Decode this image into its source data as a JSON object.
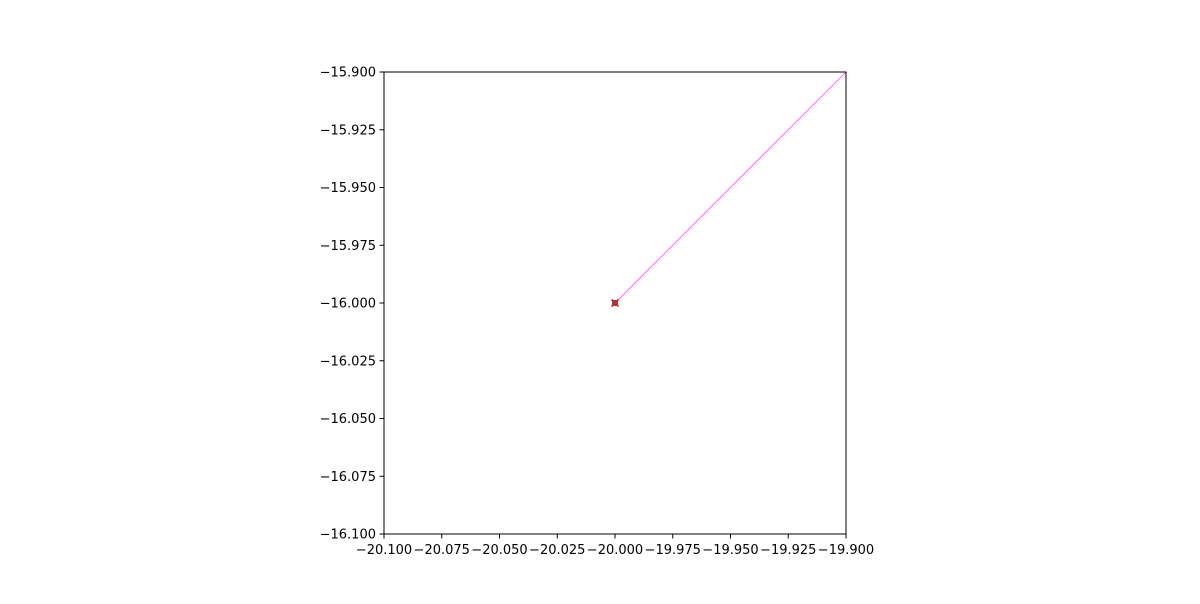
{
  "chart_data": {
    "type": "line",
    "title": "",
    "xlabel": "",
    "ylabel": "",
    "xlim": [
      -20.1,
      -19.9
    ],
    "ylim": [
      -16.1,
      -15.9
    ],
    "x_ticks": [
      -20.1,
      -20.075,
      -20.05,
      -20.025,
      -20.0,
      -19.975,
      -19.95,
      -19.925,
      -19.9
    ],
    "x_tick_labels": [
      "−20.100",
      "−20.075",
      "−20.050",
      "−20.025",
      "−20.000",
      "−19.975",
      "−19.950",
      "−19.925",
      "−19.900"
    ],
    "y_ticks": [
      -15.9,
      -15.925,
      -15.95,
      -15.975,
      -16.0,
      -16.025,
      -16.05,
      -16.075,
      -16.1
    ],
    "y_tick_labels": [
      "−15.900",
      "−15.925",
      "−15.950",
      "−15.975",
      "−16.000",
      "−16.025",
      "−16.050",
      "−16.075",
      "−16.100"
    ],
    "grid": false,
    "series": [
      {
        "kind": "line",
        "color": "#ff44ff",
        "x": [
          -20.0,
          -19.9
        ],
        "y": [
          -16.0,
          -15.9
        ]
      },
      {
        "kind": "marker",
        "marker": "square",
        "color": "#555555",
        "x": [
          -20.0
        ],
        "y": [
          -16.0
        ]
      },
      {
        "kind": "marker",
        "marker": "x",
        "color": "#d62728",
        "x": [
          -20.0
        ],
        "y": [
          -16.0
        ]
      }
    ]
  }
}
